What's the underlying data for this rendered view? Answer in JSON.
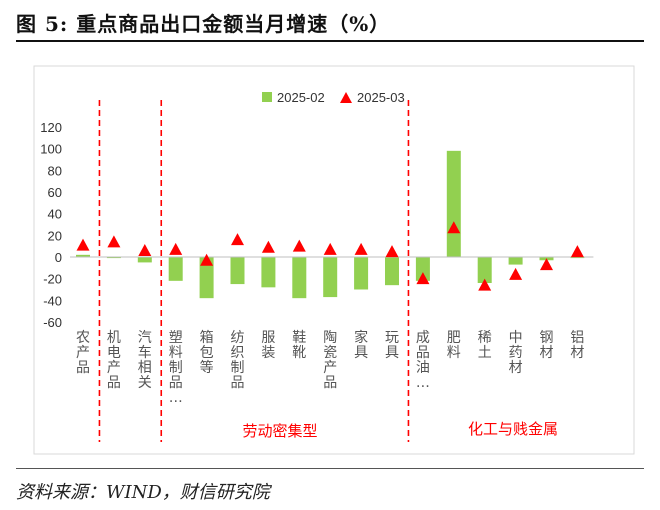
{
  "figure": {
    "title": "图 5:  重点商品出口金额当月增速（%）",
    "source": "资料来源：WIND，财信研究院"
  },
  "colors": {
    "bar": "#92D050",
    "marker": "#FF0000",
    "divider": "#FF0000",
    "group_label": "#FF0000"
  },
  "chart_data": {
    "type": "bar",
    "categories": [
      "农产品",
      "机电产品",
      "汽车相关",
      "塑料制品…",
      "箱包等",
      "纺织制品",
      "服装",
      "鞋靴",
      "陶瓷产品",
      "家具",
      "玩具",
      "成品油…",
      "肥料",
      "稀土",
      "中药材",
      "钢材",
      "铝材"
    ],
    "series": [
      {
        "name": "2025-02",
        "kind": "bar",
        "values": [
          2,
          -1,
          -5,
          -22,
          -38,
          -25,
          -28,
          -38,
          -37,
          -30,
          -26,
          -22,
          98,
          -24,
          -7,
          -3,
          -1
        ]
      },
      {
        "name": "2025-03",
        "kind": "marker",
        "values": [
          11,
          14,
          6,
          7,
          -3,
          16,
          9,
          10,
          7,
          7,
          5,
          -20,
          27,
          -26,
          -16,
          -7,
          5
        ]
      }
    ],
    "ylim": [
      -60,
      120
    ],
    "yticks": [
      -60,
      -40,
      -20,
      0,
      20,
      40,
      60,
      80,
      100,
      120
    ],
    "legend": "top",
    "grid": false,
    "group_labels": [
      "劳动密集型",
      "化工与贱金属"
    ]
  }
}
